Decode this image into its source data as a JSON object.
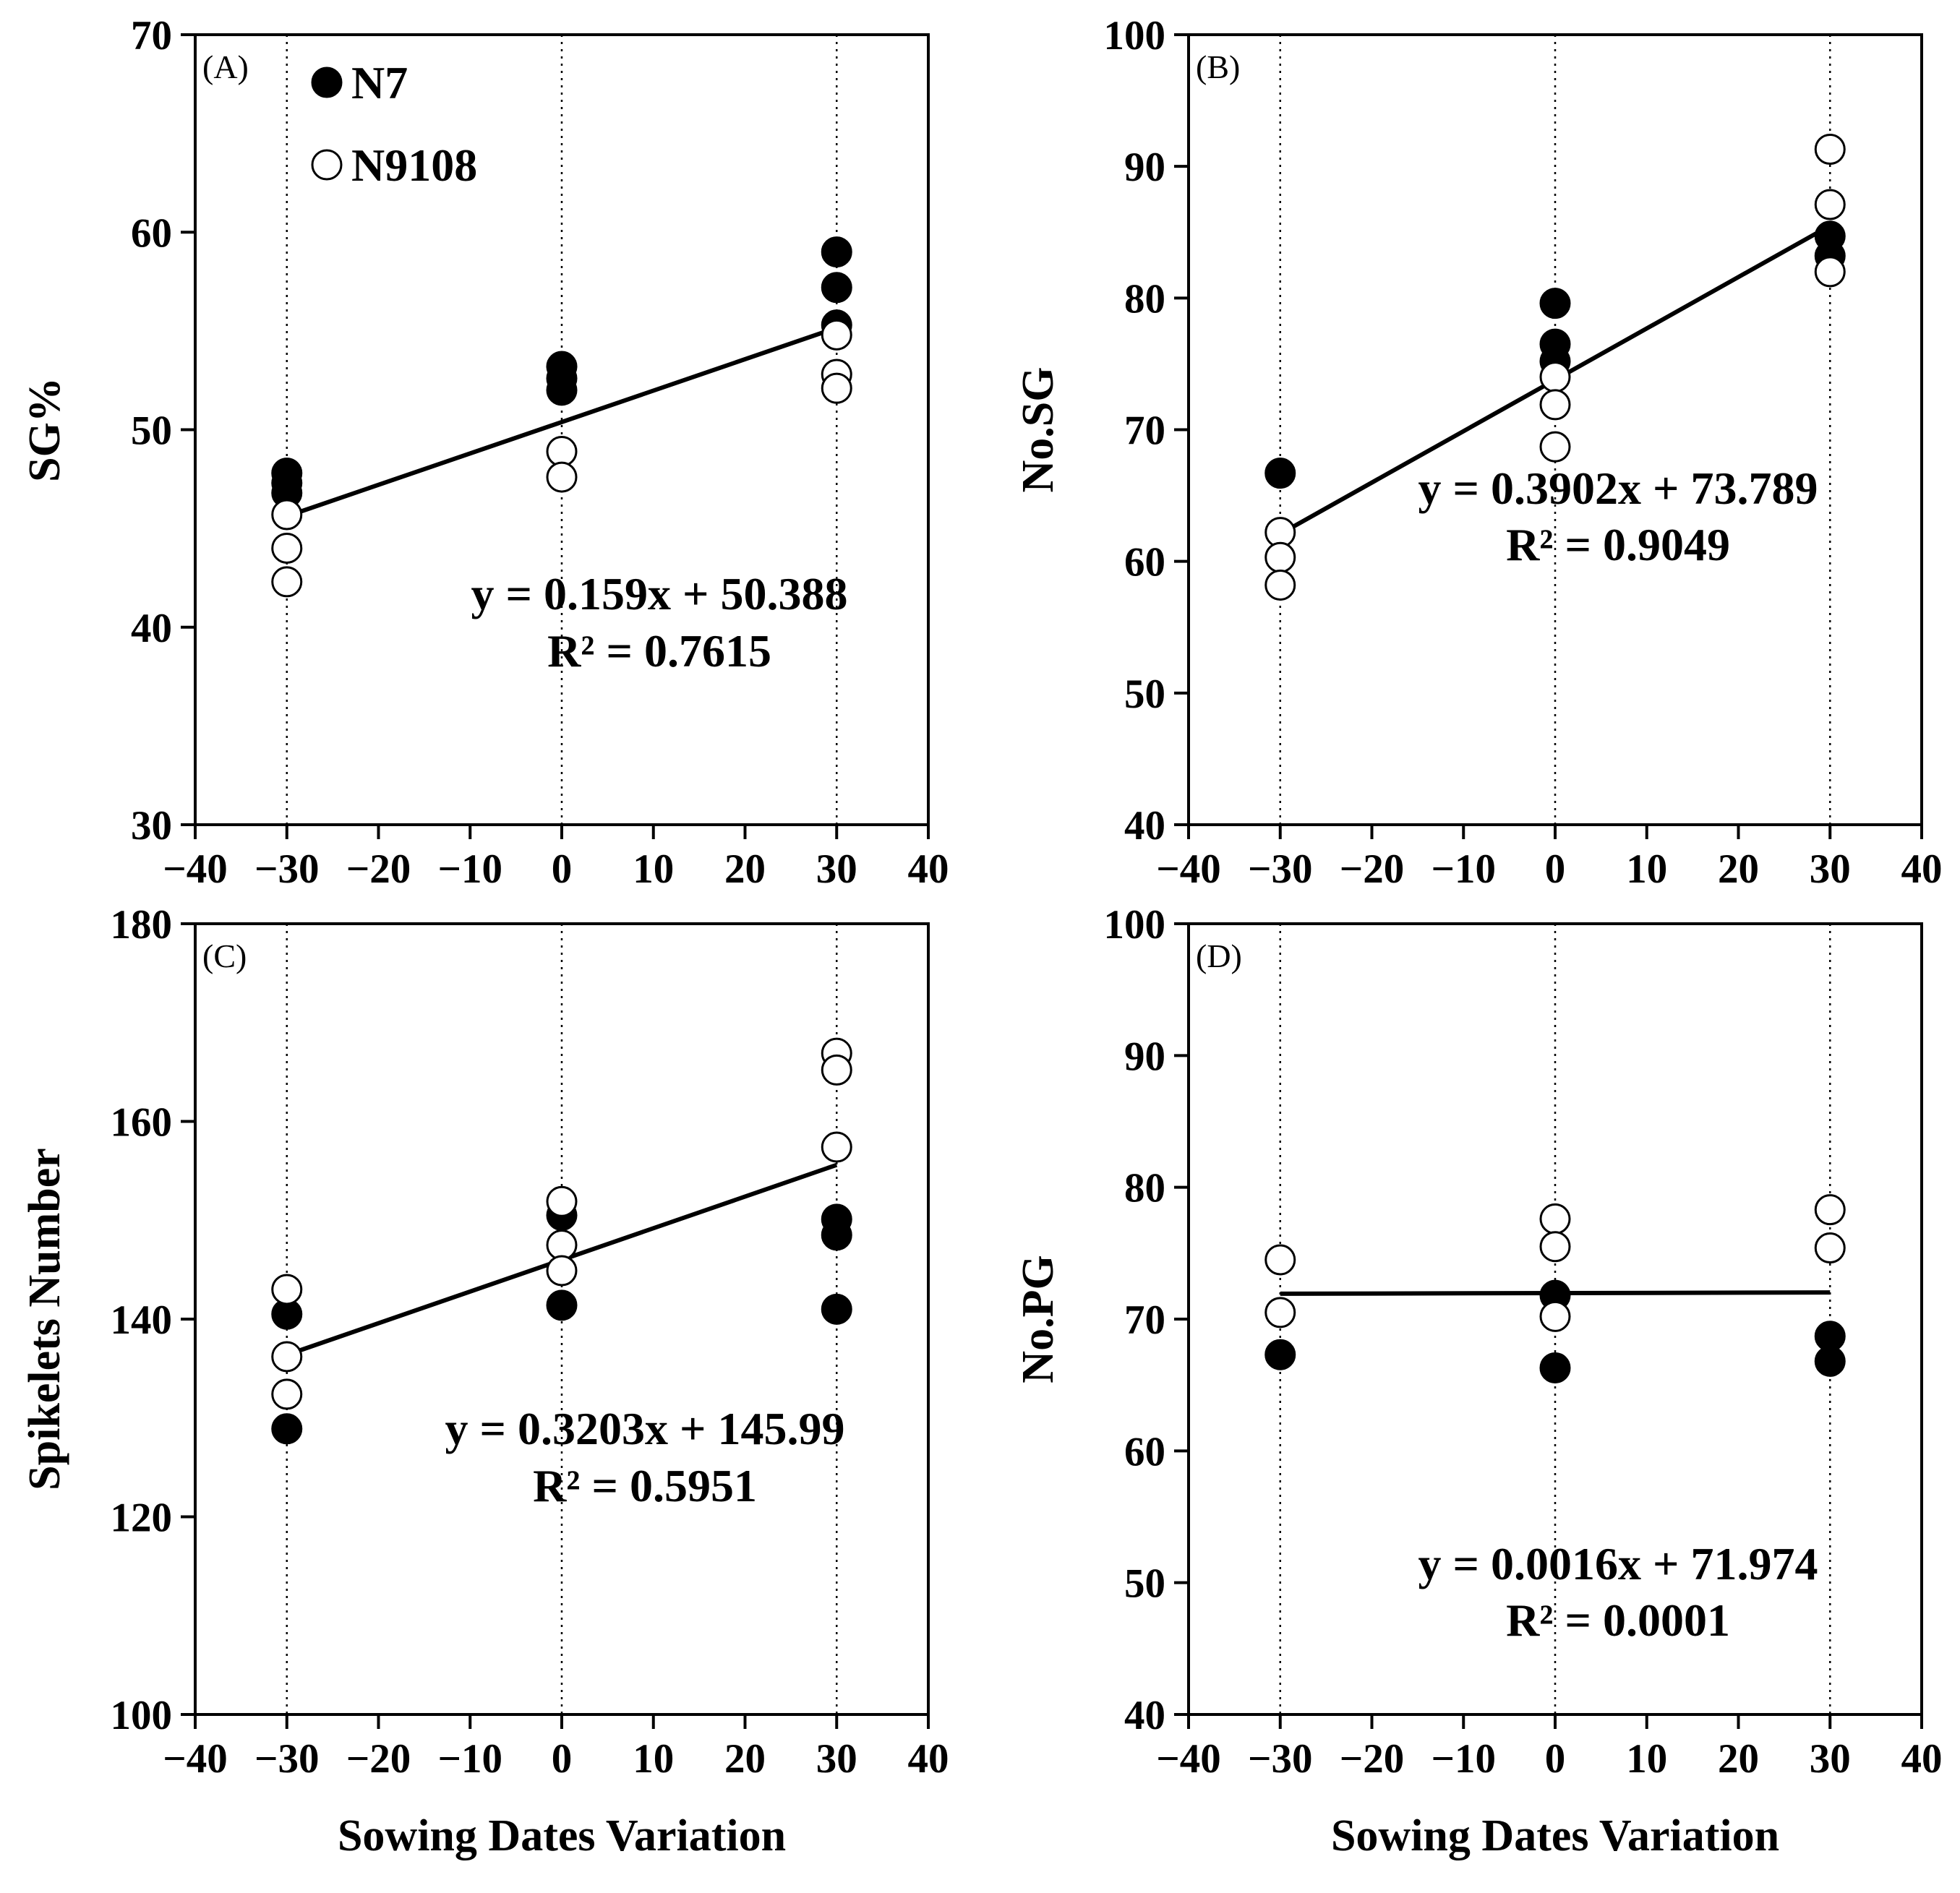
{
  "figure": {
    "x_axis_label": "Sowing Dates Variation",
    "legend": [
      {
        "label": "N7",
        "marker": "filled-circle"
      },
      {
        "label": "N9108",
        "marker": "open-circle"
      }
    ]
  },
  "chart_data": [
    {
      "panel": "(A)",
      "type": "scatter",
      "ylabel": "SG%",
      "xlabel": "Sowing Dates Variation",
      "xlim": [
        -40,
        40
      ],
      "ylim": [
        30,
        70
      ],
      "xticks": [
        -40,
        -30,
        -20,
        -10,
        0,
        10,
        20,
        30,
        40
      ],
      "xtick_labels": [
        "−40",
        "−30",
        "−20",
        "−10",
        "0",
        "10",
        "20",
        "30",
        "40"
      ],
      "yticks": [
        30,
        40,
        50,
        60,
        70
      ],
      "series": [
        {
          "name": "N7",
          "x": [
            -30,
            -30,
            -30,
            0,
            0,
            0,
            30,
            30,
            30
          ],
          "y": [
            47.8,
            47.3,
            46.8,
            53.2,
            52.6,
            52.0,
            59.0,
            57.2,
            55.3
          ]
        },
        {
          "name": "N9108",
          "x": [
            -30,
            -30,
            -30,
            0,
            0,
            30,
            30,
            30
          ],
          "y": [
            45.7,
            44.0,
            42.3,
            48.9,
            47.6,
            54.8,
            52.8,
            52.1
          ]
        }
      ],
      "trendline": {
        "slope": 0.159,
        "intercept": 50.388,
        "x_range": [
          -30,
          30
        ]
      },
      "equation": "y = 0.159x + 50.388",
      "r2": "R² = 0.7615"
    },
    {
      "panel": "(B)",
      "type": "scatter",
      "ylabel": "No.SG",
      "xlabel": "Sowing Dates Variation",
      "xlim": [
        -40,
        40
      ],
      "ylim": [
        40,
        100
      ],
      "xticks": [
        -40,
        -30,
        -20,
        -10,
        0,
        10,
        20,
        30,
        40
      ],
      "xtick_labels": [
        "−40",
        "−30",
        "−20",
        "−10",
        "0",
        "10",
        "20",
        "30",
        "40"
      ],
      "yticks": [
        40,
        50,
        60,
        70,
        80,
        90,
        100
      ],
      "series": [
        {
          "name": "N7",
          "x": [
            -30,
            0,
            0,
            0,
            30,
            30
          ],
          "y": [
            66.7,
            79.6,
            76.5,
            75.2,
            84.7,
            83.2
          ]
        },
        {
          "name": "N9108",
          "x": [
            -30,
            -30,
            -30,
            0,
            0,
            0,
            30,
            30,
            30
          ],
          "y": [
            62.2,
            60.3,
            58.2,
            74.0,
            71.9,
            68.7,
            91.3,
            87.1,
            82.0
          ]
        }
      ],
      "trendline": {
        "slope": 0.3902,
        "intercept": 73.789,
        "x_range": [
          -30,
          30
        ]
      },
      "equation": "y = 0.3902x + 73.789",
      "r2": "R² = 0.9049"
    },
    {
      "panel": "(C)",
      "type": "scatter",
      "ylabel": "Spikelets Number",
      "xlabel": "Sowing Dates Variation",
      "xlim": [
        -40,
        40
      ],
      "ylim": [
        100,
        180
      ],
      "xticks": [
        -40,
        -30,
        -20,
        -10,
        0,
        10,
        20,
        30,
        40
      ],
      "xtick_labels": [
        "−40",
        "−30",
        "−20",
        "−10",
        "0",
        "10",
        "20",
        "30",
        "40"
      ],
      "yticks": [
        100,
        120,
        140,
        160,
        180
      ],
      "series": [
        {
          "name": "N7",
          "x": [
            -30,
            -30,
            0,
            0,
            30,
            30,
            30
          ],
          "y": [
            140.5,
            128.9,
            150.5,
            141.4,
            150.1,
            148.5,
            141.0
          ]
        },
        {
          "name": "N9108",
          "x": [
            -30,
            -30,
            -30,
            0,
            0,
            0,
            30,
            30,
            30
          ],
          "y": [
            143.0,
            136.2,
            132.4,
            151.9,
            147.5,
            144.9,
            166.9,
            165.2,
            157.4
          ]
        }
      ],
      "trendline": {
        "slope": 0.3203,
        "intercept": 145.99,
        "x_range": [
          -30,
          30
        ]
      },
      "equation": "y = 0.3203x + 145.99",
      "r2": "R² = 0.5951"
    },
    {
      "panel": "(D)",
      "type": "scatter",
      "ylabel": "No.PG",
      "xlabel": "Sowing Dates Variation",
      "xlim": [
        -40,
        40
      ],
      "ylim": [
        40,
        100
      ],
      "xticks": [
        -40,
        -30,
        -20,
        -10,
        0,
        10,
        20,
        30,
        40
      ],
      "xtick_labels": [
        "−40",
        "−30",
        "−20",
        "−10",
        "0",
        "10",
        "20",
        "30",
        "40"
      ],
      "yticks": [
        40,
        50,
        60,
        70,
        80,
        90,
        100
      ],
      "series": [
        {
          "name": "N7",
          "x": [
            -30,
            0,
            0,
            30,
            30
          ],
          "y": [
            67.3,
            71.8,
            66.3,
            68.7,
            66.8
          ]
        },
        {
          "name": "N9108",
          "x": [
            -30,
            -30,
            0,
            0,
            0,
            30,
            30
          ],
          "y": [
            74.5,
            70.5,
            77.6,
            75.5,
            70.2,
            78.3,
            75.4
          ]
        }
      ],
      "trendline": {
        "slope": 0.0016,
        "intercept": 71.974,
        "x_range": [
          -30,
          30
        ]
      },
      "equation": "y = 0.0016x + 71.974",
      "r2": "R² = 0.0001"
    }
  ]
}
